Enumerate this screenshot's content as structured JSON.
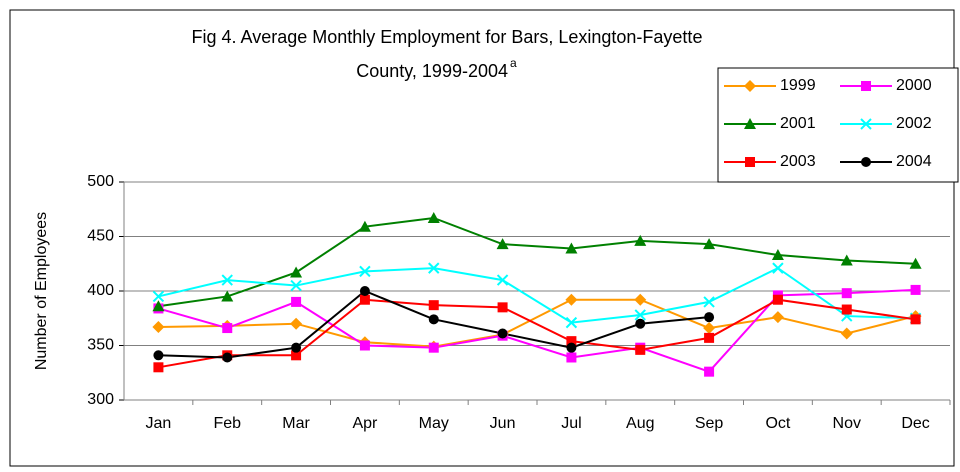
{
  "chart_data": {
    "type": "line",
    "title_lines": [
      "Fig 4. Average Monthly Employment for Bars, Lexington-Fayette",
      "County, 1999-2004"
    ],
    "title_superscript": "a",
    "y_label": "Number of Employees",
    "categories": [
      "Jan",
      "Feb",
      "Mar",
      "Apr",
      "May",
      "Jun",
      "Jul",
      "Aug",
      "Sep",
      "Oct",
      "Nov",
      "Dec"
    ],
    "series": [
      {
        "name": "1999",
        "color": "#ff9900",
        "marker": "diamond",
        "values": [
          367,
          368,
          370,
          353,
          349,
          360,
          392,
          392,
          366,
          376,
          361,
          377
        ]
      },
      {
        "name": "2000",
        "color": "#ff00ff",
        "marker": "square",
        "values": [
          384,
          366,
          390,
          350,
          348,
          359,
          339,
          348,
          326,
          396,
          398,
          401
        ]
      },
      {
        "name": "2001",
        "color": "#008000",
        "marker": "triangle",
        "values": [
          386,
          395,
          417,
          459,
          467,
          443,
          439,
          446,
          443,
          433,
          428,
          425
        ]
      },
      {
        "name": "2002",
        "color": "#00ffff",
        "marker": "x",
        "values": [
          395,
          410,
          405,
          418,
          421,
          410,
          371,
          378,
          390,
          421,
          377,
          375
        ]
      },
      {
        "name": "2003",
        "color": "#ff0000",
        "marker": "square",
        "values": [
          330,
          341,
          341,
          392,
          387,
          385,
          354,
          346,
          357,
          392,
          383,
          374
        ]
      },
      {
        "name": "2004",
        "color": "#000000",
        "marker": "circle",
        "values": [
          341,
          339,
          348,
          400,
          374,
          361,
          348,
          370,
          376,
          null,
          null,
          null
        ]
      }
    ],
    "ylim": [
      300,
      500
    ],
    "yticks": [
      300,
      350,
      400,
      450,
      500
    ],
    "grid": true,
    "legend": "top-right"
  }
}
